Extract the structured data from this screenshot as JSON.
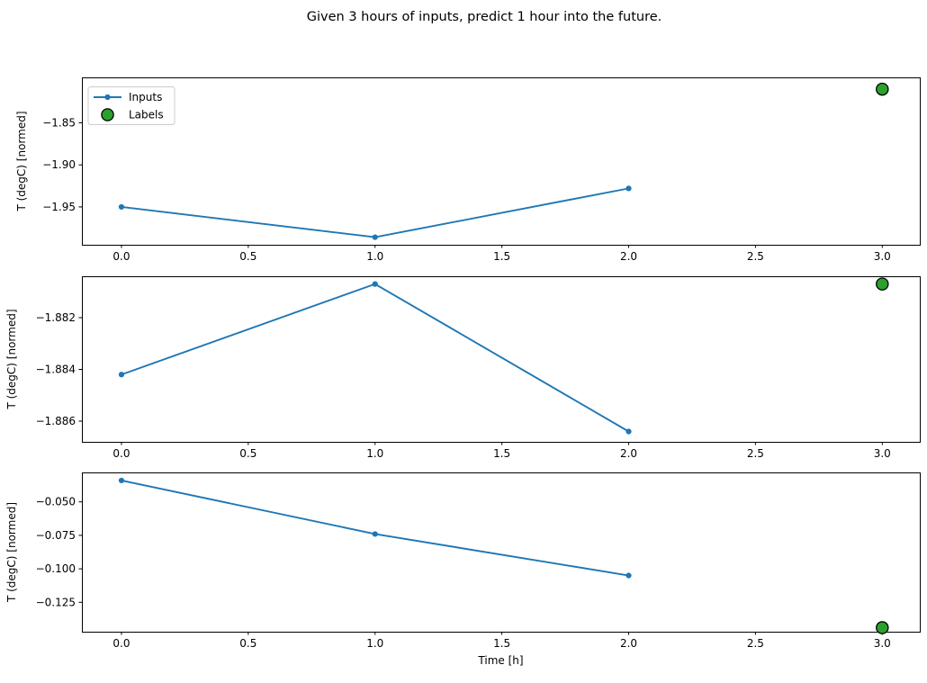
{
  "figure": {
    "title": "Given 3 hours of inputs, predict 1 hour into the future.",
    "background_color": "#ffffff",
    "text_color": "#000000"
  },
  "legend": {
    "position": "upper-left-of-first-subplot",
    "entries": [
      {
        "label": "Inputs",
        "marker": "line-with-dot",
        "color": "#1f77b4"
      },
      {
        "label": "Labels",
        "marker": "filled-circle",
        "color": "#2ca02c",
        "edge_color": "#000000"
      }
    ]
  },
  "chart_data": [
    {
      "type": "line",
      "title": "",
      "xlabel": "",
      "ylabel": "T (degC) [normed]",
      "x": [
        0,
        1,
        2
      ],
      "series": [
        {
          "name": "Inputs",
          "values": [
            -1.95,
            -1.986,
            -1.928
          ],
          "color": "#1f77b4"
        }
      ],
      "labels_point": {
        "name": "Labels",
        "x": 3,
        "y": -1.81
      },
      "xlim": [
        -0.156,
        3.148
      ],
      "ylim": [
        -1.995,
        -1.796
      ],
      "xticks": {
        "values": [
          0,
          0.5,
          1,
          1.5,
          2,
          2.5,
          3
        ],
        "labels": [
          "0.0",
          "0.5",
          "1.0",
          "1.5",
          "2.0",
          "2.5",
          "3.0"
        ]
      },
      "yticks": {
        "values": [
          -1.85,
          -1.9,
          -1.95
        ],
        "labels": [
          "−1.85",
          "−1.90",
          "−1.95"
        ]
      },
      "grid": false,
      "show_legend": true
    },
    {
      "type": "line",
      "title": "",
      "xlabel": "",
      "ylabel": "T (degC) [normed]",
      "x": [
        0,
        1,
        2
      ],
      "series": [
        {
          "name": "Inputs",
          "values": [
            -1.8842,
            -1.8807,
            -1.8864
          ],
          "color": "#1f77b4"
        }
      ],
      "labels_point": {
        "name": "Labels",
        "x": 3,
        "y": -1.8807
      },
      "xlim": [
        -0.156,
        3.148
      ],
      "ylim": [
        -1.8868,
        -1.8804
      ],
      "xticks": {
        "values": [
          0,
          0.5,
          1,
          1.5,
          2,
          2.5,
          3
        ],
        "labels": [
          "0.0",
          "0.5",
          "1.0",
          "1.5",
          "2.0",
          "2.5",
          "3.0"
        ]
      },
      "yticks": {
        "values": [
          -1.882,
          -1.884,
          -1.886
        ],
        "labels": [
          "−1.882",
          "−1.884",
          "−1.886"
        ]
      },
      "grid": false,
      "show_legend": false
    },
    {
      "type": "line",
      "title": "",
      "xlabel": "Time [h]",
      "ylabel": "T (degC) [normed]",
      "x": [
        0,
        1,
        2
      ],
      "series": [
        {
          "name": "Inputs",
          "values": [
            -0.034,
            -0.074,
            -0.105
          ],
          "color": "#1f77b4"
        }
      ],
      "labels_point": {
        "name": "Labels",
        "x": 3,
        "y": -0.144
      },
      "xlim": [
        -0.156,
        3.148
      ],
      "ylim": [
        -0.147,
        -0.028
      ],
      "xticks": {
        "values": [
          0,
          0.5,
          1,
          1.5,
          2,
          2.5,
          3
        ],
        "labels": [
          "0.0",
          "0.5",
          "1.0",
          "1.5",
          "2.0",
          "2.5",
          "3.0"
        ]
      },
      "yticks": {
        "values": [
          -0.05,
          -0.075,
          -0.1,
          -0.125
        ],
        "labels": [
          "−0.050",
          "−0.075",
          "−0.100",
          "−0.125"
        ]
      },
      "grid": false,
      "show_legend": false
    }
  ]
}
